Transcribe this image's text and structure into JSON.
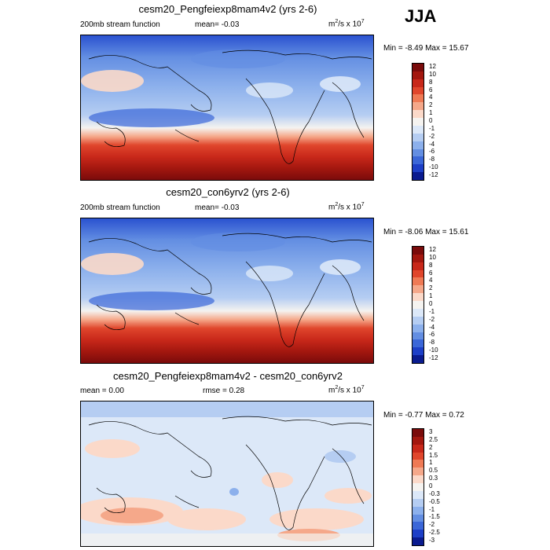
{
  "season": "JJA",
  "panels": [
    {
      "title": "cesm20_Pengfeiexp8mam4v2 (yrs 2-6)",
      "left_label": "200mb stream function",
      "mid_label": "mean=  -0.03",
      "units_base": "m",
      "units_sup1": "2",
      "units_mid": "/s x 10",
      "units_sup2": "7",
      "minmax": "Min =  -8.49 Max =  15.67",
      "colorbar_labels": [
        "12",
        "10",
        "8",
        "6",
        "4",
        "2",
        "1",
        "0",
        "-1",
        "-2",
        "-4",
        "-6",
        "-8",
        "-10",
        "-12"
      ]
    },
    {
      "title": "cesm20_con6yrv2 (yrs 2-6)",
      "left_label": "200mb stream function",
      "mid_label": "mean=  -0.03",
      "units_base": "m",
      "units_sup1": "2",
      "units_mid": "/s x 10",
      "units_sup2": "7",
      "minmax": "Min =  -8.06 Max =  15.61",
      "colorbar_labels": [
        "12",
        "10",
        "8",
        "6",
        "4",
        "2",
        "1",
        "0",
        "-1",
        "-2",
        "-4",
        "-6",
        "-8",
        "-10",
        "-12"
      ]
    },
    {
      "title": "cesm20_Pengfeiexp8mam4v2 - cesm20_con6yrv2",
      "left_label": "mean =   0.00",
      "mid_label": "rmse =   0.28",
      "units_base": "m",
      "units_sup1": "2",
      "units_mid": "/s x 10",
      "units_sup2": "7",
      "minmax": "Min =  -0.77 Max =   0.72",
      "colorbar_labels": [
        "3",
        "2.5",
        "2",
        "1.5",
        "1",
        "0.5",
        "0.3",
        "0",
        "-0.3",
        "-0.5",
        "-1",
        "-1.5",
        "-2",
        "-2.5",
        "-3"
      ]
    }
  ],
  "chart_data": [
    {
      "type": "heatmap",
      "title": "cesm20_Pengfeiexp8mam4v2 (yrs 2-6)",
      "variable": "200mb stream function",
      "mean": -0.03,
      "min": -8.49,
      "max": 15.67,
      "colorbar_levels": [
        -12,
        -10,
        -8,
        -6,
        -4,
        -2,
        -1,
        0,
        1,
        2,
        4,
        6,
        8,
        10,
        12
      ]
    },
    {
      "type": "heatmap",
      "title": "cesm20_con6yrv2 (yrs 2-6)",
      "variable": "200mb stream function",
      "mean": -0.03,
      "min": -8.06,
      "max": 15.61,
      "colorbar_levels": [
        -12,
        -10,
        -8,
        -6,
        -4,
        -2,
        -1,
        0,
        1,
        2,
        4,
        6,
        8,
        10,
        12
      ]
    },
    {
      "type": "heatmap",
      "title": "cesm20_Pengfeiexp8mam4v2 - cesm20_con6yrv2",
      "mean": 0.0,
      "rmse": 0.28,
      "min": -0.77,
      "max": 0.72,
      "colorbar_levels": [
        -3,
        -2.5,
        -2,
        -1.5,
        -1,
        -0.5,
        -0.3,
        0,
        0.3,
        0.5,
        1,
        1.5,
        2,
        2.5,
        3
      ]
    }
  ],
  "colors": {
    "scale": [
      "#7a0b0b",
      "#a3170f",
      "#c8281a",
      "#e0462c",
      "#ef7a55",
      "#f5a88a",
      "#fbd9c9",
      "#f5f3f0",
      "#dce8f8",
      "#b5cdf2",
      "#8cb0ec",
      "#638ee2",
      "#3b67d8",
      "#1d3fc7",
      "#0a1b8f"
    ]
  }
}
